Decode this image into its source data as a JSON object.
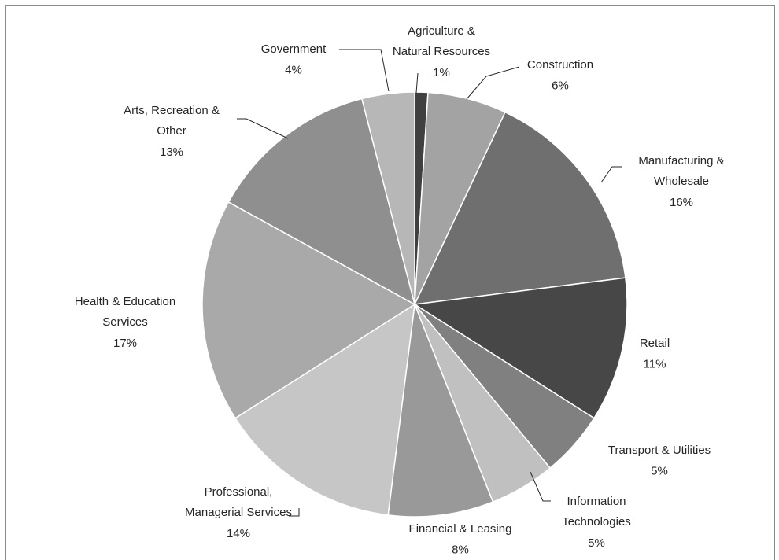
{
  "chart_data": {
    "type": "pie",
    "categories": [
      "Agriculture &\nNatural Resources",
      "Construction",
      "Manufacturing &\nWholesale",
      "Retail",
      "Transport & Utilities",
      "Information\nTechnologies",
      "Financial & Leasing",
      "Professional,\nManagerial Services",
      "Health & Education\nServices",
      "Arts, Recreation &\nOther",
      "Government"
    ],
    "values": [
      1,
      6,
      16,
      11,
      5,
      5,
      8,
      14,
      17,
      13,
      4
    ],
    "value_labels": [
      "1%",
      "6%",
      "16%",
      "11%",
      "5%",
      "5%",
      "8%",
      "14%",
      "17%",
      "13%",
      "4%"
    ],
    "colors": [
      "#404040",
      "#a3a3a3",
      "#6f6f6f",
      "#474747",
      "#808080",
      "#c0c0c0",
      "#999999",
      "#c6c6c6",
      "#a9a9a9",
      "#8f8f8f",
      "#b7b7b7"
    ]
  }
}
